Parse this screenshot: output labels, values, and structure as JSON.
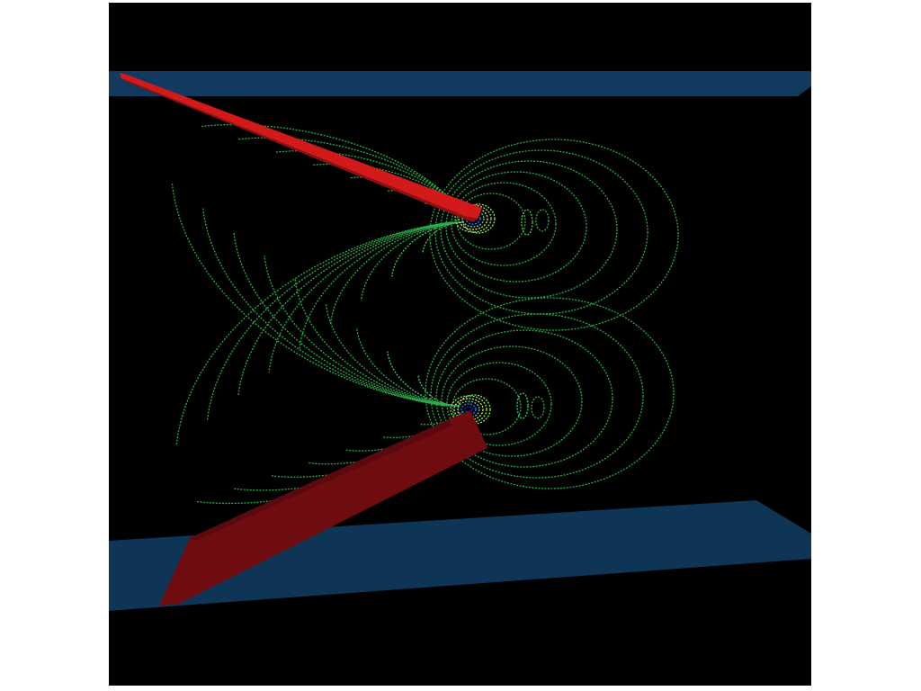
{
  "scene": {
    "background_color": "#000000",
    "page_background_color": "#ffffff",
    "wall_color": "#123a5e",
    "blade_top_color": "#d21a1a",
    "blade_bottom_color": "#6e0c10",
    "contour_palette": [
      "#1e8a3c",
      "#27b04a",
      "#3dd65c",
      "#8cf050",
      "#f0f040",
      "#40e0d0",
      "#2a7ff0",
      "#1a2ad8"
    ]
  }
}
